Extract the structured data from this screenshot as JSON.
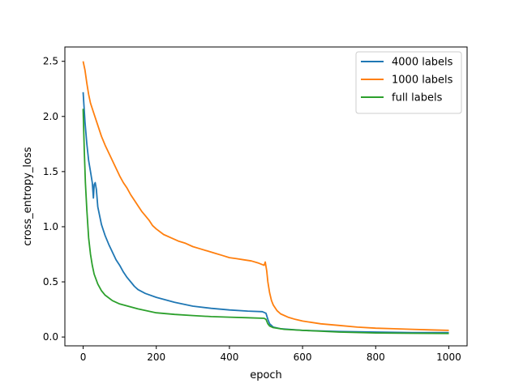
{
  "chart_data": {
    "type": "line",
    "title": "",
    "xlabel": "epoch",
    "ylabel": "cross_entropy_loss",
    "xlim": [
      -50,
      1050
    ],
    "ylim": [
      -0.08,
      2.63
    ],
    "xticks": [
      0,
      200,
      400,
      600,
      800,
      1000
    ],
    "yticks": [
      0.0,
      0.5,
      1.0,
      1.5,
      2.0,
      2.5
    ],
    "xtick_labels": [
      "0",
      "200",
      "400",
      "600",
      "800",
      "1000"
    ],
    "ytick_labels": [
      "0.0",
      "0.5",
      "1.0",
      "1.5",
      "2.0",
      "2.5"
    ],
    "grid": false,
    "legend_position": "top-right",
    "series": [
      {
        "name": "4000 labels",
        "color": "#1f77b4",
        "points": [
          [
            0,
            2.22
          ],
          [
            5,
            1.95
          ],
          [
            10,
            1.75
          ],
          [
            15,
            1.6
          ],
          [
            20,
            1.5
          ],
          [
            25,
            1.4
          ],
          [
            28,
            1.26
          ],
          [
            30,
            1.38
          ],
          [
            33,
            1.4
          ],
          [
            36,
            1.34
          ],
          [
            40,
            1.18
          ],
          [
            50,
            1.02
          ],
          [
            60,
            0.92
          ],
          [
            70,
            0.84
          ],
          [
            80,
            0.77
          ],
          [
            90,
            0.7
          ],
          [
            100,
            0.65
          ],
          [
            110,
            0.59
          ],
          [
            120,
            0.54
          ],
          [
            130,
            0.5
          ],
          [
            140,
            0.46
          ],
          [
            150,
            0.43
          ],
          [
            170,
            0.395
          ],
          [
            200,
            0.36
          ],
          [
            250,
            0.315
          ],
          [
            300,
            0.28
          ],
          [
            350,
            0.26
          ],
          [
            400,
            0.245
          ],
          [
            450,
            0.235
          ],
          [
            490,
            0.23
          ],
          [
            500,
            0.215
          ],
          [
            505,
            0.16
          ],
          [
            510,
            0.12
          ],
          [
            520,
            0.09
          ],
          [
            540,
            0.075
          ],
          [
            600,
            0.06
          ],
          [
            700,
            0.05
          ],
          [
            800,
            0.045
          ],
          [
            900,
            0.04
          ],
          [
            1000,
            0.04
          ]
        ]
      },
      {
        "name": "1000 labels",
        "color": "#ff7f0e",
        "points": [
          [
            0,
            2.5
          ],
          [
            5,
            2.42
          ],
          [
            10,
            2.3
          ],
          [
            15,
            2.2
          ],
          [
            20,
            2.12
          ],
          [
            30,
            2.02
          ],
          [
            40,
            1.92
          ],
          [
            50,
            1.82
          ],
          [
            60,
            1.74
          ],
          [
            70,
            1.67
          ],
          [
            80,
            1.6
          ],
          [
            90,
            1.53
          ],
          [
            100,
            1.46
          ],
          [
            110,
            1.4
          ],
          [
            120,
            1.35
          ],
          [
            130,
            1.29
          ],
          [
            140,
            1.24
          ],
          [
            150,
            1.19
          ],
          [
            160,
            1.14
          ],
          [
            170,
            1.1
          ],
          [
            180,
            1.06
          ],
          [
            190,
            1.01
          ],
          [
            200,
            0.98
          ],
          [
            220,
            0.93
          ],
          [
            240,
            0.9
          ],
          [
            260,
            0.87
          ],
          [
            280,
            0.85
          ],
          [
            300,
            0.82
          ],
          [
            320,
            0.8
          ],
          [
            340,
            0.78
          ],
          [
            360,
            0.76
          ],
          [
            380,
            0.74
          ],
          [
            400,
            0.72
          ],
          [
            420,
            0.71
          ],
          [
            440,
            0.7
          ],
          [
            460,
            0.69
          ],
          [
            480,
            0.67
          ],
          [
            495,
            0.65
          ],
          [
            498,
            0.68
          ],
          [
            502,
            0.6
          ],
          [
            505,
            0.5
          ],
          [
            510,
            0.4
          ],
          [
            515,
            0.33
          ],
          [
            520,
            0.29
          ],
          [
            530,
            0.24
          ],
          [
            540,
            0.21
          ],
          [
            560,
            0.18
          ],
          [
            580,
            0.16
          ],
          [
            600,
            0.145
          ],
          [
            650,
            0.12
          ],
          [
            700,
            0.105
          ],
          [
            750,
            0.09
          ],
          [
            800,
            0.08
          ],
          [
            850,
            0.075
          ],
          [
            900,
            0.07
          ],
          [
            950,
            0.065
          ],
          [
            1000,
            0.06
          ]
        ]
      },
      {
        "name": "full labels",
        "color": "#2ca02c",
        "points": [
          [
            0,
            2.07
          ],
          [
            3,
            1.7
          ],
          [
            6,
            1.4
          ],
          [
            10,
            1.15
          ],
          [
            15,
            0.9
          ],
          [
            20,
            0.75
          ],
          [
            25,
            0.65
          ],
          [
            30,
            0.57
          ],
          [
            40,
            0.48
          ],
          [
            50,
            0.42
          ],
          [
            60,
            0.38
          ],
          [
            80,
            0.33
          ],
          [
            100,
            0.3
          ],
          [
            150,
            0.255
          ],
          [
            200,
            0.22
          ],
          [
            250,
            0.205
          ],
          [
            300,
            0.195
          ],
          [
            350,
            0.185
          ],
          [
            400,
            0.18
          ],
          [
            450,
            0.175
          ],
          [
            495,
            0.17
          ],
          [
            500,
            0.16
          ],
          [
            505,
            0.12
          ],
          [
            510,
            0.1
          ],
          [
            520,
            0.085
          ],
          [
            550,
            0.07
          ],
          [
            600,
            0.06
          ],
          [
            700,
            0.045
          ],
          [
            800,
            0.037
          ],
          [
            900,
            0.034
          ],
          [
            1000,
            0.032
          ]
        ]
      }
    ]
  }
}
